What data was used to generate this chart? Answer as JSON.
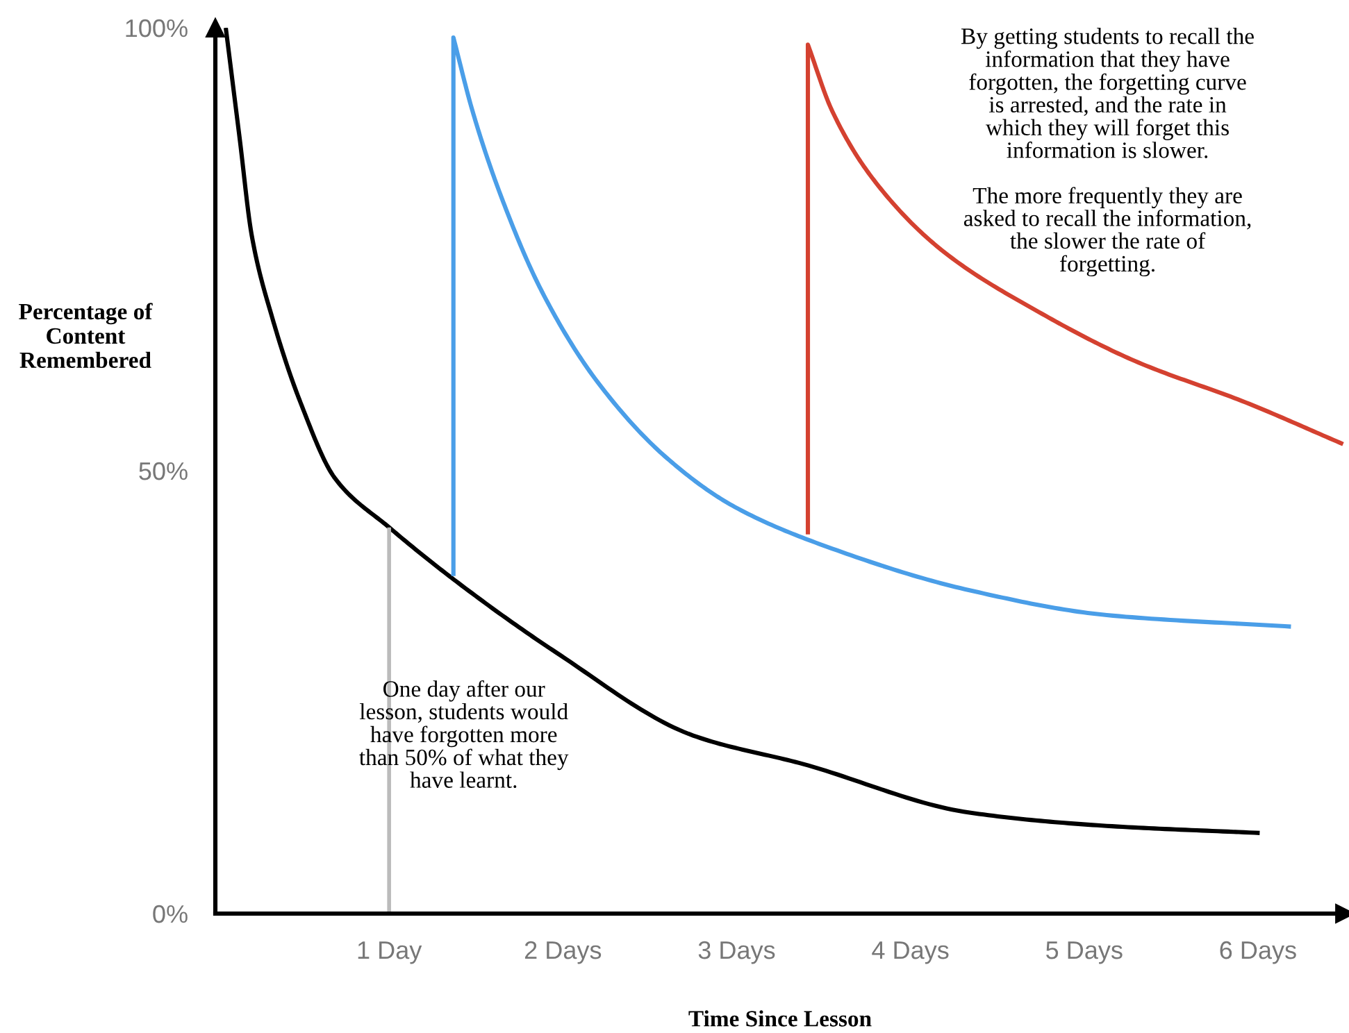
{
  "chart_data": {
    "type": "line",
    "xlabel": "Time Since Lesson",
    "ylabel": "Percentage of\nContent\nRemembered",
    "xlim": [
      0,
      6.5
    ],
    "xticks": [
      {
        "value": 1,
        "label": "1 Day"
      },
      {
        "value": 2,
        "label": "2 Days"
      },
      {
        "value": 3,
        "label": "3 Days"
      },
      {
        "value": 4,
        "label": "4 Days"
      },
      {
        "value": 5,
        "label": "5 Days"
      },
      {
        "value": 6,
        "label": "6 Days"
      }
    ],
    "ylim": [
      0,
      100
    ],
    "yticks": [
      {
        "value": 0,
        "label": "0%"
      },
      {
        "value": 50,
        "label": "50%"
      },
      {
        "value": 100,
        "label": "100%"
      }
    ],
    "grid": false,
    "legend": false,
    "marker": "none",
    "line_style": "solid",
    "series": [
      {
        "color": "#000000",
        "x": [
          0.06,
          0.14,
          0.21,
          0.33,
          0.49,
          0.69,
          1.0,
          1.4,
          1.96,
          2.75,
          3.38,
          4.34,
          5.13,
          6.01
        ],
        "values": [
          100,
          87.5,
          76.5,
          67.1,
          57.7,
          49.1,
          43.6,
          37.3,
          29.5,
          20.1,
          16.9,
          11.4,
          9.9,
          9.1
        ]
      },
      {
        "color": "#4a9ee8",
        "x": [
          1.37,
          1.37,
          1.48,
          1.64,
          1.88,
          2.2,
          2.6,
          2.99,
          3.55,
          4.34,
          5.13,
          6.19
        ],
        "values": [
          38.1,
          98.9,
          90.6,
          81.2,
          70.2,
          60.0,
          51.4,
          45.9,
          41.2,
          36.5,
          33.7,
          32.4
        ]
      },
      {
        "color": "#d44130",
        "x": [
          3.41,
          3.41,
          3.55,
          3.79,
          4.18,
          4.74,
          5.29,
          5.93,
          6.49
        ],
        "values": [
          42.8,
          98.1,
          90.6,
          82.8,
          74.9,
          67.9,
          62.4,
          57.7,
          53.0
        ]
      },
      {
        "color": "#bbbbbb",
        "x": [
          1.0,
          1.0
        ],
        "values": [
          0,
          43.6
        ]
      }
    ],
    "annotations": [
      "One day after our\nlesson, students would\nhave forgotten more\nthan 50% of what they\nhave learnt.",
      "By getting students to recall the\ninformation that they have\nforgotten, the forgetting curve\nis arrested, and the rate in\nwhich they will forget this\ninformation is slower.\n\nThe more frequently they are\nasked to recall the information,\nthe slower the rate of\nforgetting."
    ]
  }
}
